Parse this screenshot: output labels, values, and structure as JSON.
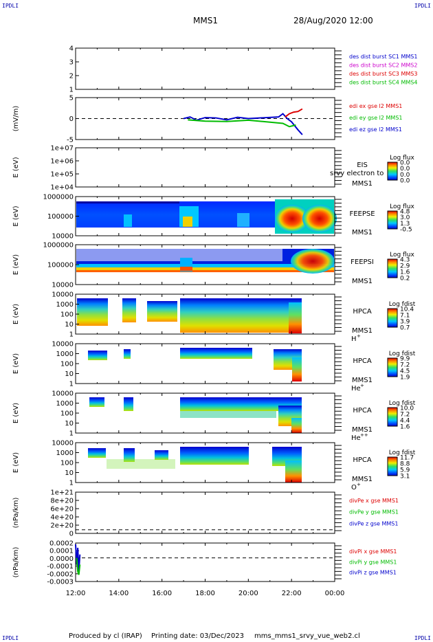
{
  "header": {
    "mission": "MMS1",
    "datetime": "28/Aug/2020 12:00",
    "corner_left": "IPDLI",
    "corner_right": "IPDLI"
  },
  "footer": {
    "produced_by": "Produced by cl (IRAP)",
    "printing_date": "Printing date: 03/Dec/2023",
    "script_name": "mms_mms1_srvy_vue_web2.cl"
  },
  "x_axis": {
    "ticks": [
      "12:00",
      "14:00",
      "16:00",
      "18:00",
      "20:00",
      "22:00",
      "00:00"
    ]
  },
  "chart_data": [
    {
      "id": "p1",
      "type": "line",
      "ylabel": "",
      "yticks": [
        "4",
        "3",
        "2",
        "1"
      ],
      "ylim": [
        0.6,
        4.4
      ],
      "legend": [
        {
          "text": "des dist burst SC1 MMS1",
          "color": "#0000cc"
        },
        {
          "text": "des dist burst SC2 MMS2",
          "color": "#cc00cc"
        },
        {
          "text": "des dist burst SC3 MMS3",
          "color": "#dd0000"
        },
        {
          "text": "des dist burst SC4 MMS4",
          "color": "#00bb00"
        }
      ],
      "series": []
    },
    {
      "id": "p2",
      "type": "line",
      "ylabel": "(mV/m)",
      "yticks": [
        "5",
        "0",
        "-5"
      ],
      "ylim": [
        -6.5,
        6.5
      ],
      "legend": [
        {
          "text": "edi ex gse l2 MMS1",
          "color": "#dd0000"
        },
        {
          "text": "edi ey gse l2 MMS1",
          "color": "#00bb00"
        },
        {
          "text": "edi ez gse l2 MMS1",
          "color": "#0000cc"
        }
      ],
      "series": [
        {
          "name": "edi ez gse l2 MMS1",
          "color": "#0000cc",
          "x": [
            17.0,
            17.3,
            17.6,
            18.0,
            18.5,
            19.0,
            19.5,
            20.0,
            21.4,
            21.6,
            21.8,
            22.0,
            22.3,
            22.5
          ],
          "y": [
            0,
            0.5,
            -0.5,
            0.3,
            0.2,
            -0.4,
            0.4,
            0,
            0.5,
            1.5,
            0,
            -1.0,
            -3.5,
            -5.0
          ]
        },
        {
          "name": "edi ex gse l2 MMS1",
          "color": "#dd0000",
          "x": [
            21.7,
            21.9,
            22.1,
            22.3,
            22.5
          ],
          "y": [
            0.5,
            1.5,
            2.0,
            2.2,
            3.0
          ]
        },
        {
          "name": "edi ey gse l2 MMS1",
          "color": "#00bb00",
          "x": [
            17.2,
            18.0,
            19.0,
            20.0,
            21.6,
            21.9,
            22.2
          ],
          "y": [
            -0.4,
            -0.8,
            -0.9,
            -0.5,
            -1.5,
            -2.5,
            -2.0
          ]
        }
      ]
    },
    {
      "id": "p3",
      "type": "heatmap",
      "ylabel": "E (eV)",
      "yticks": [
        "1e+07",
        "1e+06",
        "1e+05",
        "1e+04"
      ],
      "label_top": "EIS",
      "label_bottom": "MMS1",
      "overlap_text": "srvy electron to",
      "cbar_title": "Log flux",
      "cbar_ticks": [
        "0.0",
        "0.0",
        "0.0",
        "0.0"
      ]
    },
    {
      "id": "p4",
      "type": "heatmap",
      "ylabel": "E (eV)",
      "yticks": [
        "1000000",
        "100000",
        "10000"
      ],
      "label_top": "FEEPSE",
      "label_bottom": "MMS1",
      "cbar_title": "Log flux",
      "cbar_ticks": [
        "4.8",
        "3.0",
        "1.3",
        "-0.5"
      ]
    },
    {
      "id": "p5",
      "type": "heatmap",
      "ylabel": "E (eV)",
      "yticks": [
        "1000000",
        "100000",
        "10000"
      ],
      "label_top": "FEEPSI",
      "label_bottom": "MMS1",
      "cbar_title": "Log flux",
      "cbar_ticks": [
        "4.3",
        "2.9",
        "1.6",
        "0.2"
      ]
    },
    {
      "id": "p6",
      "type": "heatmap",
      "ylabel": "E (eV)",
      "yticks": [
        "10000",
        "1000",
        "100",
        "10",
        "1"
      ],
      "label_top": "HPCA",
      "label_bottom": "MMS1",
      "species": "H",
      "charge": "+",
      "cbar_title": "Log fdist",
      "cbar_ticks": [
        "10.4",
        "7.1",
        "3.9",
        "0.7"
      ]
    },
    {
      "id": "p7",
      "type": "heatmap",
      "ylabel": "E (eV)",
      "yticks": [
        "10000",
        "1000",
        "100",
        "10",
        "1"
      ],
      "label_top": "HPCA",
      "label_bottom": "MMS1",
      "species": "He",
      "charge": "+",
      "cbar_title": "Log fdist",
      "cbar_ticks": [
        "9.9",
        "7.2",
        "4.5",
        "1.9"
      ]
    },
    {
      "id": "p8",
      "type": "heatmap",
      "ylabel": "E (eV)",
      "yticks": [
        "10000",
        "1000",
        "100",
        "10",
        "1"
      ],
      "label_top": "HPCA",
      "label_bottom": "MMS1",
      "species": "He",
      "charge": "++",
      "cbar_title": "Log fdist",
      "cbar_ticks": [
        "10.0",
        "7.2",
        "4.4",
        "1.6"
      ]
    },
    {
      "id": "p9",
      "type": "heatmap",
      "ylabel": "E (eV)",
      "yticks": [
        "10000",
        "1000",
        "100",
        "10",
        "1"
      ],
      "label_top": "HPCA",
      "label_bottom": "MMS1",
      "species": "O",
      "charge": "+",
      "cbar_title": "Log fdist",
      "cbar_ticks": [
        "11.7",
        "8.8",
        "5.9",
        "3.1"
      ]
    },
    {
      "id": "p10",
      "type": "line",
      "ylabel": "(nPa/km)",
      "yticks": [
        "1e+21",
        "8e+20",
        "6e+20",
        "4e+20",
        "2e+20",
        "0"
      ],
      "ylim": [
        -1e+20,
        1.05e+21
      ],
      "legend": [
        {
          "text": "divPe x gse MMS1",
          "color": "#dd0000"
        },
        {
          "text": "divPe y gse MMS1",
          "color": "#00bb00"
        },
        {
          "text": "divPe z gse MMS1",
          "color": "#0000cc"
        }
      ],
      "series": []
    },
    {
      "id": "p11",
      "type": "line",
      "ylabel": "(nPa/km)",
      "yticks": [
        "0.0002",
        "0.0001",
        "0.0000",
        "-0.0001",
        "-0.0002",
        "-0.0003"
      ],
      "ylim": [
        -0.00035,
        0.00022
      ],
      "legend": [
        {
          "text": "divPi x gse MMS1",
          "color": "#dd0000"
        },
        {
          "text": "divPi y gse MMS1",
          "color": "#00bb00"
        },
        {
          "text": "divPi z gse MMS1",
          "color": "#0000cc"
        }
      ],
      "series": [
        {
          "name": "divPi z gse MMS1",
          "color": "#0000cc",
          "x": [
            12.0,
            12.05,
            12.1,
            12.15,
            12.2
          ],
          "y": [
            0.0002,
            -0.0001,
            0.00015,
            -0.0002,
            5e-05
          ]
        },
        {
          "name": "divPi y gse MMS1",
          "color": "#00bb00",
          "x": [
            12.05,
            12.1,
            12.15,
            12.2
          ],
          "y": [
            0.0,
            -0.0002,
            -0.00025,
            -0.0001
          ]
        }
      ]
    }
  ]
}
